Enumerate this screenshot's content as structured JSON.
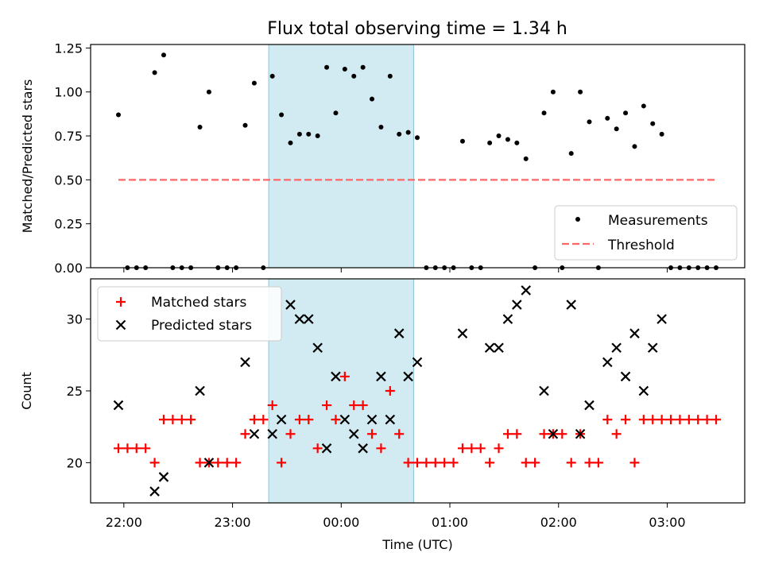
{
  "title": "Flux total observing time = 1.34 h",
  "colors": {
    "shade": "#add8e6",
    "threshold": "#ff6666",
    "matched": "#ff0000",
    "predicted": "#000000",
    "measure": "#000000"
  },
  "chart_data": [
    {
      "type": "scatter",
      "ylabel": "Matched/Predicted stars",
      "ylim": [
        0.0,
        1.27
      ],
      "yticks": [
        "0.00",
        "0.25",
        "0.50",
        "0.75",
        "1.00",
        "1.25"
      ],
      "shaded_span": [
        "23:20",
        "00:40"
      ],
      "legend": {
        "placement": "lower-right",
        "entries": [
          "Measurements",
          "Threshold"
        ]
      },
      "series": [
        {
          "name": "Measurements",
          "marker": "dot",
          "points": [
            [
              "21:57",
              0.87
            ],
            [
              "22:02",
              0.0
            ],
            [
              "22:07",
              0.0
            ],
            [
              "22:12",
              0.0
            ],
            [
              "22:17",
              1.11
            ],
            [
              "22:22",
              1.21
            ],
            [
              "22:27",
              0.0
            ],
            [
              "22:32",
              0.0
            ],
            [
              "22:37",
              0.0
            ],
            [
              "22:42",
              0.8
            ],
            [
              "22:47",
              1.0
            ],
            [
              "22:52",
              0.0
            ],
            [
              "22:57",
              0.0
            ],
            [
              "23:02",
              0.0
            ],
            [
              "23:07",
              0.81
            ],
            [
              "23:12",
              1.05
            ],
            [
              "23:17",
              0.0
            ],
            [
              "23:22",
              1.09
            ],
            [
              "23:27",
              0.87
            ],
            [
              "23:32",
              0.71
            ],
            [
              "23:37",
              0.76
            ],
            [
              "23:42",
              0.76
            ],
            [
              "23:47",
              0.75
            ],
            [
              "23:52",
              1.14
            ],
            [
              "23:57",
              0.88
            ],
            [
              "00:02",
              1.13
            ],
            [
              "00:07",
              1.09
            ],
            [
              "00:12",
              1.14
            ],
            [
              "00:17",
              0.96
            ],
            [
              "00:22",
              0.8
            ],
            [
              "00:27",
              1.09
            ],
            [
              "00:32",
              0.76
            ],
            [
              "00:37",
              0.77
            ],
            [
              "00:42",
              0.74
            ],
            [
              "00:47",
              0.0
            ],
            [
              "00:52",
              0.0
            ],
            [
              "00:57",
              0.0
            ],
            [
              "01:02",
              0.0
            ],
            [
              "01:07",
              0.72
            ],
            [
              "01:12",
              0.0
            ],
            [
              "01:17",
              0.0
            ],
            [
              "01:22",
              0.71
            ],
            [
              "01:27",
              0.75
            ],
            [
              "01:32",
              0.73
            ],
            [
              "01:37",
              0.71
            ],
            [
              "01:42",
              0.62
            ],
            [
              "01:47",
              0.0
            ],
            [
              "01:52",
              0.88
            ],
            [
              "01:57",
              1.0
            ],
            [
              "02:02",
              0.0
            ],
            [
              "02:07",
              0.65
            ],
            [
              "02:12",
              1.0
            ],
            [
              "02:17",
              0.83
            ],
            [
              "02:22",
              0.0
            ],
            [
              "02:27",
              0.85
            ],
            [
              "02:32",
              0.79
            ],
            [
              "02:37",
              0.88
            ],
            [
              "02:42",
              0.69
            ],
            [
              "02:47",
              0.92
            ],
            [
              "02:52",
              0.82
            ],
            [
              "02:57",
              0.76
            ],
            [
              "03:02",
              0.0
            ],
            [
              "03:07",
              0.0
            ],
            [
              "03:12",
              0.0
            ],
            [
              "03:17",
              0.0
            ],
            [
              "03:22",
              0.0
            ],
            [
              "03:27",
              0.0
            ]
          ]
        },
        {
          "name": "Threshold",
          "line": "dashed",
          "points": [
            [
              "21:57",
              0.5
            ],
            [
              "03:27",
              0.5
            ]
          ]
        }
      ]
    },
    {
      "type": "scatter",
      "xlabel": "Time (UTC)",
      "ylabel": "Count",
      "ylim": [
        17.2,
        32.8
      ],
      "yticks": [
        "20",
        "25",
        "30"
      ],
      "xticks": [
        "22:00",
        "23:00",
        "00:00",
        "01:00",
        "02:00",
        "03:00"
      ],
      "shaded_span": [
        "23:20",
        "00:40"
      ],
      "legend": {
        "placement": "upper-left",
        "entries": [
          "Matched stars",
          "Predicted stars"
        ]
      },
      "series": [
        {
          "name": "Matched stars",
          "marker": "plus",
          "points": [
            [
              "21:57",
              21
            ],
            [
              "22:02",
              21
            ],
            [
              "22:07",
              21
            ],
            [
              "22:12",
              21
            ],
            [
              "22:17",
              20
            ],
            [
              "22:22",
              23
            ],
            [
              "22:27",
              23
            ],
            [
              "22:32",
              23
            ],
            [
              "22:37",
              23
            ],
            [
              "22:42",
              20
            ],
            [
              "22:47",
              20
            ],
            [
              "22:52",
              20
            ],
            [
              "22:57",
              20
            ],
            [
              "23:02",
              20
            ],
            [
              "23:07",
              22
            ],
            [
              "23:12",
              23
            ],
            [
              "23:17",
              23
            ],
            [
              "23:22",
              24
            ],
            [
              "23:27",
              20
            ],
            [
              "23:32",
              22
            ],
            [
              "23:37",
              23
            ],
            [
              "23:42",
              23
            ],
            [
              "23:47",
              21
            ],
            [
              "23:52",
              24
            ],
            [
              "23:57",
              23
            ],
            [
              "00:02",
              26
            ],
            [
              "00:07",
              24
            ],
            [
              "00:12",
              24
            ],
            [
              "00:17",
              22
            ],
            [
              "00:22",
              21
            ],
            [
              "00:27",
              25
            ],
            [
              "00:32",
              22
            ],
            [
              "00:37",
              20
            ],
            [
              "00:42",
              20
            ],
            [
              "00:47",
              20
            ],
            [
              "00:52",
              20
            ],
            [
              "00:57",
              20
            ],
            [
              "01:02",
              20
            ],
            [
              "01:07",
              21
            ],
            [
              "01:12",
              21
            ],
            [
              "01:17",
              21
            ],
            [
              "01:22",
              20
            ],
            [
              "01:27",
              21
            ],
            [
              "01:32",
              22
            ],
            [
              "01:37",
              22
            ],
            [
              "01:42",
              20
            ],
            [
              "01:47",
              20
            ],
            [
              "01:52",
              22
            ],
            [
              "01:57",
              22
            ],
            [
              "02:02",
              22
            ],
            [
              "02:07",
              20
            ],
            [
              "02:12",
              22
            ],
            [
              "02:17",
              20
            ],
            [
              "02:22",
              20
            ],
            [
              "02:27",
              23
            ],
            [
              "02:32",
              22
            ],
            [
              "02:37",
              23
            ],
            [
              "02:42",
              20
            ],
            [
              "02:47",
              23
            ],
            [
              "02:52",
              23
            ],
            [
              "02:57",
              23
            ],
            [
              "03:02",
              23
            ],
            [
              "03:07",
              23
            ],
            [
              "03:12",
              23
            ],
            [
              "03:17",
              23
            ],
            [
              "03:22",
              23
            ],
            [
              "03:27",
              23
            ]
          ]
        },
        {
          "name": "Predicted stars",
          "marker": "x",
          "points": [
            [
              "21:57",
              24
            ],
            [
              "22:17",
              18
            ],
            [
              "22:22",
              19
            ],
            [
              "22:42",
              25
            ],
            [
              "22:47",
              20
            ],
            [
              "23:07",
              27
            ],
            [
              "23:12",
              22
            ],
            [
              "23:22",
              22
            ],
            [
              "23:27",
              23
            ],
            [
              "23:32",
              31
            ],
            [
              "23:37",
              30
            ],
            [
              "23:42",
              30
            ],
            [
              "23:47",
              28
            ],
            [
              "23:52",
              21
            ],
            [
              "23:57",
              26
            ],
            [
              "00:02",
              23
            ],
            [
              "00:07",
              22
            ],
            [
              "00:12",
              21
            ],
            [
              "00:17",
              23
            ],
            [
              "00:22",
              26
            ],
            [
              "00:27",
              23
            ],
            [
              "00:32",
              29
            ],
            [
              "00:37",
              26
            ],
            [
              "00:42",
              27
            ],
            [
              "01:07",
              29
            ],
            [
              "01:22",
              28
            ],
            [
              "01:27",
              28
            ],
            [
              "01:32",
              30
            ],
            [
              "01:37",
              31
            ],
            [
              "01:42",
              32
            ],
            [
              "01:52",
              25
            ],
            [
              "01:57",
              22
            ],
            [
              "02:07",
              31
            ],
            [
              "02:12",
              22
            ],
            [
              "02:17",
              24
            ],
            [
              "02:27",
              27
            ],
            [
              "02:32",
              28
            ],
            [
              "02:37",
              26
            ],
            [
              "02:42",
              29
            ],
            [
              "02:47",
              25
            ],
            [
              "02:52",
              28
            ],
            [
              "02:57",
              30
            ]
          ]
        }
      ]
    }
  ]
}
